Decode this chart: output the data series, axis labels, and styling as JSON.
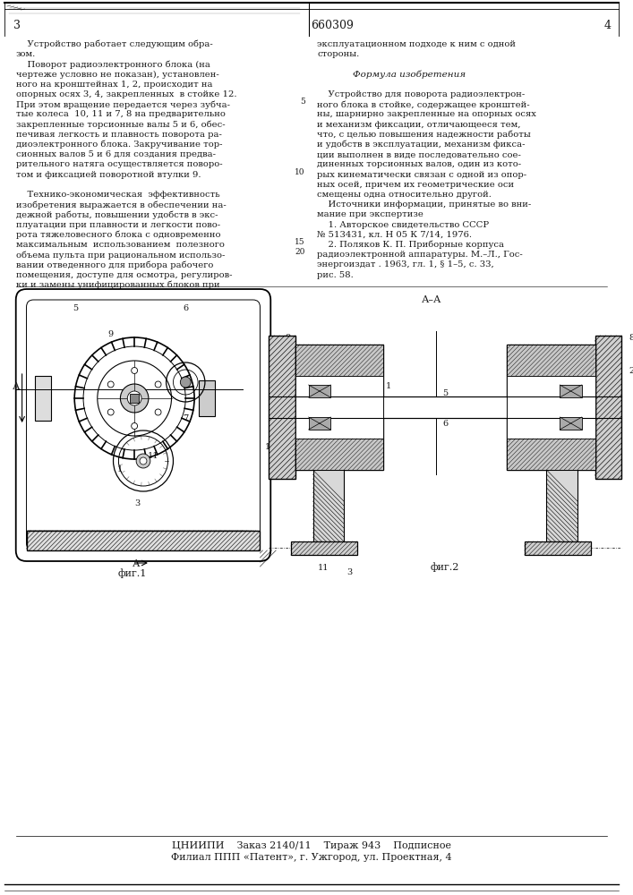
{
  "patent_number": "660309",
  "page_right": "4",
  "background_color": "#ffffff",
  "text_color": "#1a1a1a",
  "col1_lines": [
    "    Устройство работает следующим обра-",
    "зом.",
    "    Поворот радиоэлектронного блока (на",
    "чертеже условно не показан), установлен-",
    "ного на кронштейнах 1, 2, происходит на",
    "опорных осях 3, 4, закрепленных  в стойке 12.",
    "При этом вращение передается через зубча-",
    "тые колеса  10, 11 и 7, 8 на предварительно",
    "закрепленные торсионные валы 5 и 6, обес-",
    "печивая легкость и плавность поворота ра-",
    "диоэлектронного блока. Закручивание тор-",
    "сионных валов 5 и 6 для создания предва-",
    "рительного натяга осуществляется поворо-",
    "том и фиксацией поворотной втулки 9.",
    "",
    "    Технико-экономическая  эффективность",
    "изобретения выражается в обеспечении на-",
    "дежной работы, повышении удобств в экс-",
    "плуатации при плавности и легкости пово-",
    "рота тяжеловесного блока с одновременно",
    "максимальным  использованием  полезного",
    "объема пульта при рациональном использо-",
    "вании отведенного для прибора рабочего",
    "помещения, доступе для осмотра, регулиров-",
    "ки и замены унифицированных блоков при"
  ],
  "col2_lines": [
    "эксплуатационном подходе к ним с одной",
    "стороны.",
    "",
    "       Формула изобретения",
    "",
    "    Устройство для поворота радиоэлектрон-",
    "ного блока в стойке, содержащее кронштей-",
    "ны, шарнирно закрепленные на опорных осях",
    "и механизм фиксации, отличающееся тем,",
    "что, с целью повышения надежности работы",
    "и удобств в эксплуатации, механизм фикса-",
    "ции выполнен в виде последовательно сое-",
    "диненных торсионных валов, один из кото-",
    "рых кинематически связан с одной из опор-",
    "ных осей, причем их геометрические оси",
    "смещены одна относительно другой.",
    "    Источники информации, принятые во вни-",
    "мание при экспертизе",
    "    1. Авторское свидетельство СССР",
    "№ 513431, кл. Н 05 К 7/14, 1976.",
    "    2. Поляков К. П. Приборные корпуса",
    "радиоэлектронной аппаратуры. М.–Л., Гос-",
    "энергоиздат . 1963, гл. 1, § 1–5, с. 33,",
    "рис. 58."
  ],
  "footer_line1": "ЦНИИПИ    Заказ 2140/11    Тираж 943    Подписное",
  "footer_line2": "Филиал ППП «Патент», г. Ужгород, ул. Проектная, 4",
  "fig1_caption": "фиг.1",
  "fig2_caption": "фиг.2",
  "aa_label": "А–А",
  "a_arrow_label": "А"
}
